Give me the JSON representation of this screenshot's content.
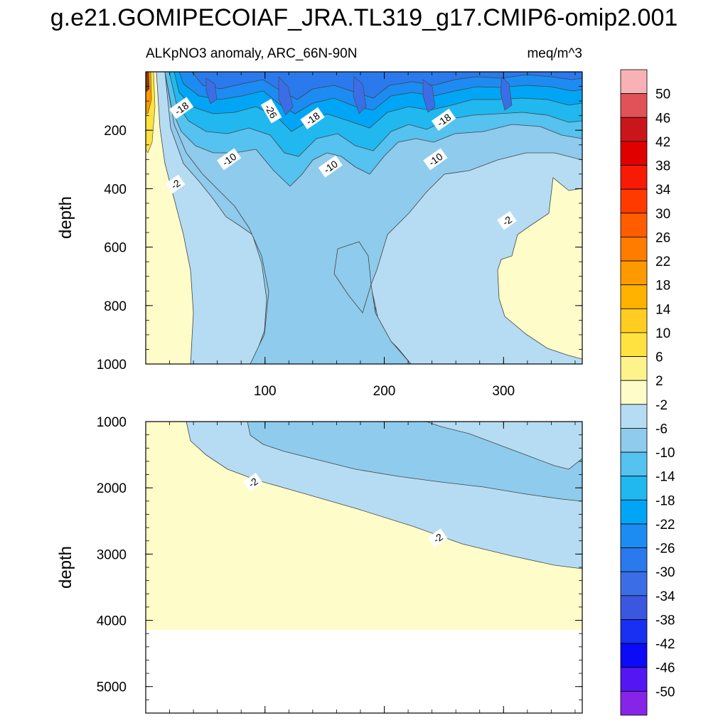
{
  "chart_data": {
    "type": "contour",
    "title": "g.e21.GOMIPECOIAF_JRA.TL319_g17.CMIP6-omip2.001",
    "subtitle_left": "ALKpNO3 anomaly, ARC_66N-90N",
    "subtitle_right": "meq/m^3",
    "ylabel": "depth",
    "xlim": [
      0,
      366
    ],
    "xticks": [
      "100",
      "200",
      "300"
    ],
    "panels": [
      {
        "name": "upper",
        "ylim": [
          0,
          1000
        ],
        "yticks": [
          "200",
          "400",
          "600",
          "800",
          "1000"
        ],
        "contour_labels": [
          {
            "text": "-18",
            "x": 30,
            "y": 125
          },
          {
            "text": "-26",
            "x": 105,
            "y": 135
          },
          {
            "text": "-18",
            "x": 140,
            "y": 160
          },
          {
            "text": "-18",
            "x": 250,
            "y": 165
          },
          {
            "text": "-10",
            "x": 70,
            "y": 300
          },
          {
            "text": "-10",
            "x": 155,
            "y": 325
          },
          {
            "text": "-10",
            "x": 243,
            "y": 300
          },
          {
            "text": "-2",
            "x": 25,
            "y": 385
          },
          {
            "text": "-2",
            "x": 303,
            "y": 510
          }
        ]
      },
      {
        "name": "lower",
        "ylim": [
          1000,
          5400
        ],
        "yticks": [
          "1000",
          "2000",
          "3000",
          "4000",
          "5000"
        ],
        "contour_labels": [
          {
            "text": "-2",
            "x": 90,
            "y": 1920
          },
          {
            "text": "-2",
            "x": 245,
            "y": 2760
          }
        ]
      }
    ],
    "colorbar": {
      "levels": [
        "50",
        "46",
        "42",
        "38",
        "34",
        "30",
        "26",
        "22",
        "18",
        "14",
        "10",
        "6",
        "2",
        "-2",
        "-6",
        "-10",
        "-14",
        "-18",
        "-22",
        "-26",
        "-30",
        "-34",
        "-38",
        "-42",
        "-46",
        "-50"
      ],
      "colors": [
        "#f8b2b6",
        "#e05257",
        "#c9161a",
        "#e00000",
        "#f81a05",
        "#ff3a00",
        "#ff5d00",
        "#ff7c00",
        "#ff9900",
        "#ffb200",
        "#ffcd1f",
        "#ffe23f",
        "#fdf28c",
        "#fefdca",
        "#b5dcf2",
        "#8ecbec",
        "#55c2ef",
        "#21b8f0",
        "#00a6f5",
        "#1c8cf2",
        "#2a79ed",
        "#3b6ee6",
        "#3a58df",
        "#1930f2",
        "#0b0bf7",
        "#5417f3",
        "#8624e8"
      ]
    }
  }
}
